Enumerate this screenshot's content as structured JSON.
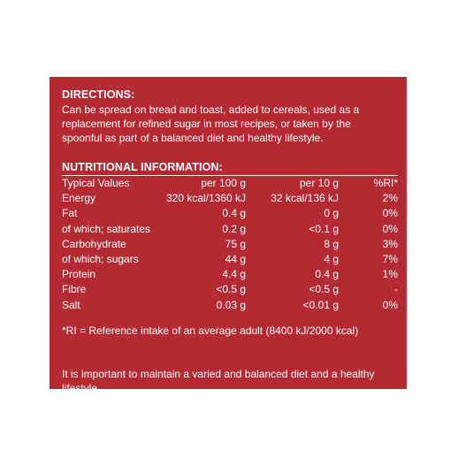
{
  "directions": {
    "heading": "DIRECTIONS:",
    "text": "Can be spread on bread and toast, added to cereals, used as a replacement for refined sugar in most recipes, or taken by the spoonful as part of a balanced diet and healthy lifestyle."
  },
  "nutrition": {
    "heading": "NUTRITIONAL INFORMATION:",
    "columns": [
      "Typical Values",
      "per 100 g",
      "per 10 g",
      "%RI*"
    ],
    "rows": [
      [
        "Energy",
        "320 kcal/1360 kJ",
        "32 kcal/136 kJ",
        "2%"
      ],
      [
        "Fat",
        "0.4 g",
        "0 g",
        "0%"
      ],
      [
        "of which; saturates",
        "0.2 g",
        "<0.1 g",
        "0%"
      ],
      [
        "Carbohydrate",
        "75 g",
        "8 g",
        "3%"
      ],
      [
        "of which; sugars",
        "44 g",
        "4 g",
        "7%"
      ],
      [
        "Protein",
        "4.4 g",
        "0.4 g",
        "1%"
      ],
      [
        "Fibre",
        "<0.5 g",
        "<0.5 g",
        "-"
      ],
      [
        "Salt",
        "0.03 g",
        "<0.01 g",
        "0%"
      ]
    ],
    "footnote": "*RI = Reference intake of an average adult (8400 kJ/2000 kcal)"
  },
  "closing": "It is important to maintain a varied and balanced diet and a healthy lifestyle.",
  "colors": {
    "panel": "#b42a33",
    "text": "#ffffff",
    "page": "#ffffff"
  }
}
